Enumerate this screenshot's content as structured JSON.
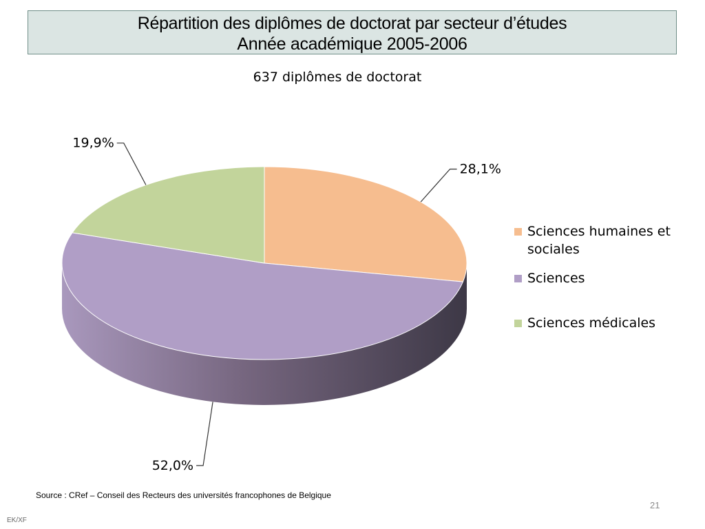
{
  "header": {
    "title_line1": "Répartition des diplômes de doctorat par secteur d’études",
    "title_line2": "Année académique 2005-2006"
  },
  "chart_data": {
    "type": "pie",
    "title": "637 diplômes de doctorat",
    "slices": [
      {
        "label": "Sciences humaines et sociales",
        "value": 28.1,
        "display": "28,1%",
        "color": "#f6bd8f"
      },
      {
        "label": "Sciences",
        "value": 52.0,
        "display": "52,0%",
        "color": "#b09ec6"
      },
      {
        "label": "Sciences médicales",
        "value": 19.9,
        "display": "19,9%",
        "color": "#c2d49b"
      }
    ],
    "legend_position": "right",
    "style": "3d"
  },
  "legend": {
    "items": [
      {
        "label": "Sciences humaines et sociales",
        "color": "#f6bd8f"
      },
      {
        "label": "Sciences",
        "color": "#b09ec6"
      },
      {
        "label": "Sciences médicales",
        "color": "#c2d49b"
      }
    ]
  },
  "footer": {
    "source": "Source :  CRef – Conseil des Recteurs des universités francophones de Belgique",
    "page_number": "21",
    "initials": "EK/XF"
  }
}
